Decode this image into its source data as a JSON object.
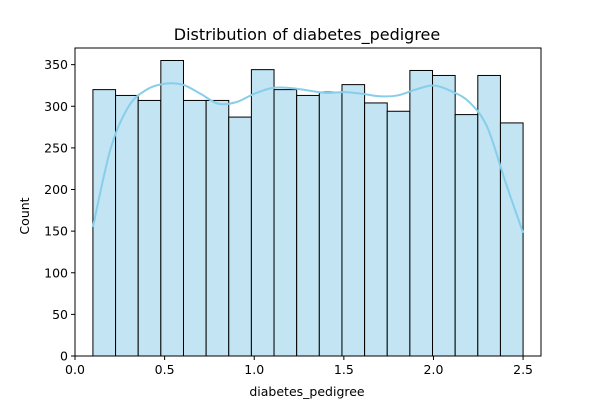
{
  "chart_data": {
    "type": "bar",
    "subtype": "histogram-with-kde",
    "title": "Distribution of diabetes_pedigree",
    "xlabel": "diabetes_pedigree",
    "ylabel": "Count",
    "xlim": [
      0.0,
      2.6
    ],
    "ylim": [
      0,
      370
    ],
    "x_ticks": [
      "0.0",
      "0.5",
      "1.0",
      "1.5",
      "2.0",
      "2.5"
    ],
    "y_ticks": [
      "0",
      "50",
      "100",
      "150",
      "200",
      "250",
      "300",
      "350"
    ],
    "bin_edges": [
      0.1,
      0.2263,
      0.3526,
      0.4789,
      0.6053,
      0.7316,
      0.8579,
      0.9842,
      1.1105,
      1.2368,
      1.3632,
      1.4895,
      1.6158,
      1.7421,
      1.8684,
      1.9947,
      2.1211,
      2.2474,
      2.3737,
      2.5
    ],
    "counts": [
      320,
      313,
      307,
      355,
      307,
      307,
      287,
      344,
      320,
      313,
      317,
      326,
      304,
      294,
      343,
      337,
      290,
      337,
      280
    ],
    "kde": {
      "x": [
        0.1,
        0.2,
        0.3,
        0.4,
        0.5,
        0.6,
        0.7,
        0.8,
        0.9,
        1.0,
        1.1,
        1.2,
        1.3,
        1.4,
        1.5,
        1.6,
        1.7,
        1.8,
        1.9,
        2.0,
        2.1,
        2.2,
        2.3,
        2.4,
        2.5
      ],
      "y": [
        155,
        250,
        300,
        320,
        327,
        326,
        315,
        303,
        305,
        315,
        322,
        322,
        319,
        316,
        317,
        315,
        312,
        313,
        320,
        325,
        318,
        305,
        275,
        210,
        148
      ]
    },
    "colors": {
      "bar_fill": "#c2e4f3",
      "bar_edge": "#000000",
      "kde_line": "#87ceeb"
    },
    "grid": false,
    "legend": "none"
  }
}
